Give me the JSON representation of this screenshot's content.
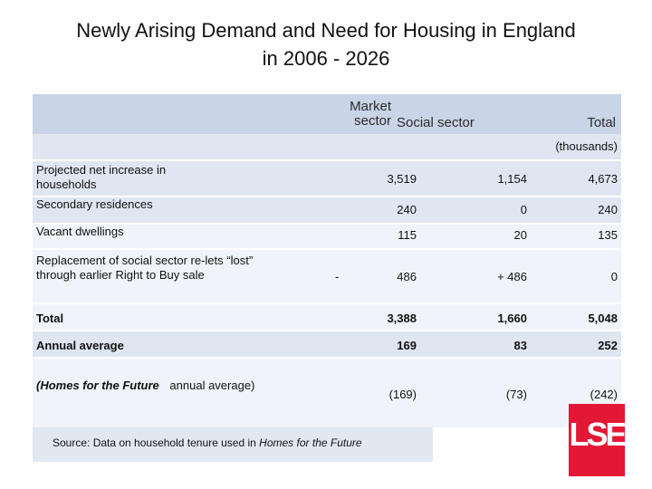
{
  "title": {
    "line1": "Newly Arising Demand and Need for Housing in England",
    "line2": "in 2006 - 2026"
  },
  "header": {
    "market_line1": "Market",
    "market_line2": "sector",
    "social": "Social sector",
    "total": "Total",
    "units": "(thousands)"
  },
  "rows": [
    {
      "label": "Projected net increase in households",
      "market": "3,519",
      "social": "1,154",
      "total": "4,673"
    },
    {
      "label": "Secondary residences",
      "market": "240",
      "social": "0",
      "total": "240"
    },
    {
      "label": "Vacant dwellings",
      "market": "115",
      "social": "20",
      "total": "135"
    },
    {
      "label": "Replacement of social sector re-lets “lost” through earlier Right to Buy sale",
      "market_sign": "-",
      "market": "486",
      "social": "+ 486",
      "total": "0"
    },
    {
      "label": "Total",
      "market": "3,388",
      "social": "1,660",
      "total": "5,048"
    },
    {
      "label": "Annual average",
      "market": "169",
      "social": "83",
      "total": "252"
    },
    {
      "label_italic": "(Homes for the Future",
      "label_rest": "annual average)",
      "market": "(169)",
      "social": "(73)",
      "total": "(242)"
    }
  ],
  "source": {
    "prefix": "Source:  Data on household tenure used in ",
    "italic": "Homes for the Future"
  },
  "logo": {
    "text": "LSE",
    "color": "#e31837"
  }
}
